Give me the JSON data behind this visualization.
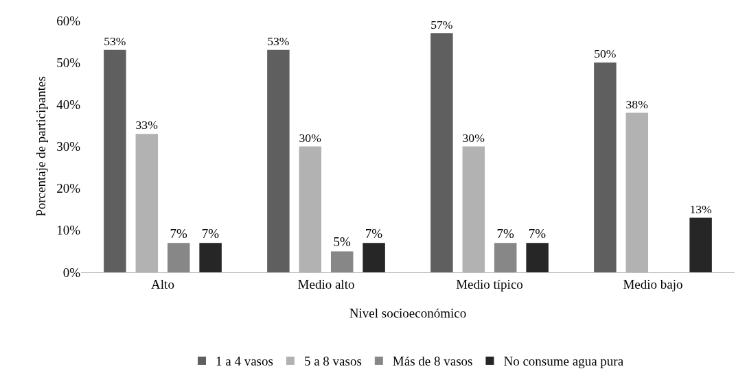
{
  "chart_data": {
    "type": "bar",
    "xlabel": "Nivel socioeconómico",
    "ylabel": "Porcentaje de participantes",
    "categories": [
      "Alto",
      "Medio alto",
      "Medio típico",
      "Medio bajo"
    ],
    "series": [
      {
        "name": "1 a 4 vasos",
        "color": "#5f5f5f",
        "values": [
          53,
          53,
          57,
          50
        ],
        "value_labels": [
          "53%",
          "53%",
          "57%",
          "50%"
        ]
      },
      {
        "name": "5 a 8 vasos",
        "color": "#b2b2b2",
        "values": [
          33,
          30,
          30,
          38
        ],
        "value_labels": [
          "33%",
          "30%",
          "30%",
          "38%"
        ]
      },
      {
        "name": "Más de 8 vasos",
        "color": "#878787",
        "values": [
          7,
          5,
          7,
          null
        ],
        "value_labels": [
          "7%",
          "5%",
          "7%",
          null
        ]
      },
      {
        "name": "No consume agua pura",
        "color": "#262626",
        "values": [
          7,
          7,
          7,
          13
        ],
        "value_labels": [
          "7%",
          "7%",
          "7%",
          "13%"
        ]
      }
    ],
    "ylim": [
      0,
      60
    ],
    "yticks": [
      {
        "value": 0,
        "label": "0%"
      },
      {
        "value": 10,
        "label": "10%"
      },
      {
        "value": 20,
        "label": "20%"
      },
      {
        "value": 30,
        "label": "30%"
      },
      {
        "value": 40,
        "label": "40%"
      },
      {
        "value": 50,
        "label": "50%"
      },
      {
        "value": 60,
        "label": "60%"
      }
    ],
    "legend": "bottom"
  }
}
